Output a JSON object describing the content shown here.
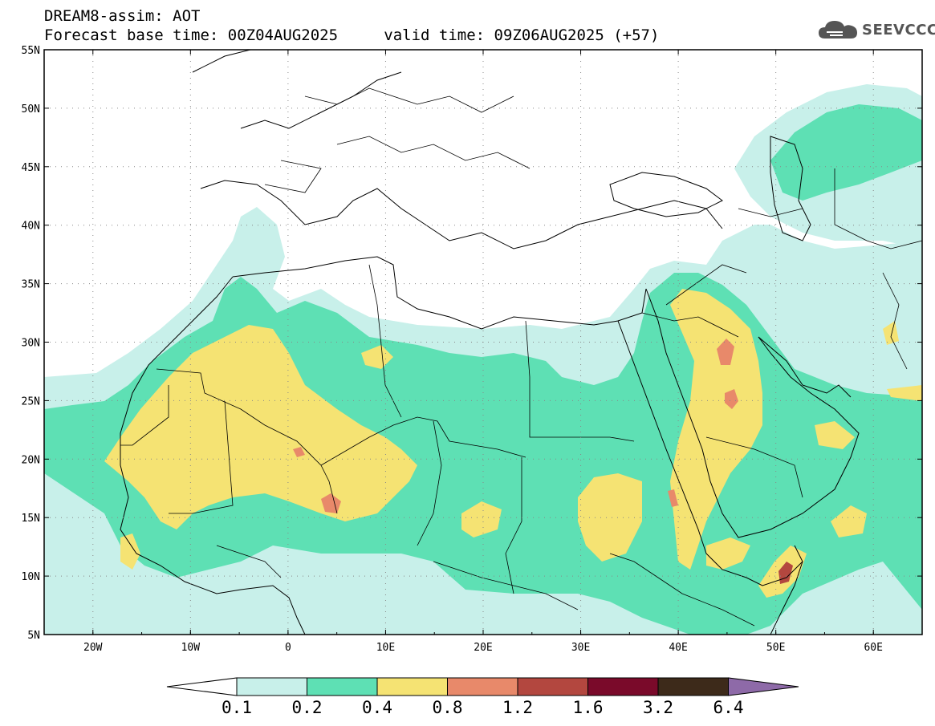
{
  "header": {
    "title": "DREAM8-assim: AOT",
    "base_time": "Forecast base time: 00Z04AUG2025",
    "valid_time": "valid time: 09Z06AUG2025 (+57)"
  },
  "logo": {
    "text": "SEEVCCC",
    "icon": "cloud-icon"
  },
  "map": {
    "lon_range": [
      -25,
      65
    ],
    "lat_range": [
      5,
      55
    ],
    "lat_ticks": [
      "55N",
      "50N",
      "45N",
      "40N",
      "35N",
      "30N",
      "25N",
      "20N",
      "15N",
      "10N",
      "5N"
    ],
    "lon_ticks": [
      "20W",
      "10W",
      "0",
      "10E",
      "20E",
      "30E",
      "40E",
      "50E",
      "60E"
    ],
    "grid": true,
    "field": "aerosol optical thickness",
    "high_aot_regions": [
      {
        "lon": -3,
        "lat": 23,
        "class": "0.4-0.8"
      },
      {
        "lon": 44,
        "lat": 26,
        "class": "0.4-0.8"
      },
      {
        "lon": 4.5,
        "lat": 16.5,
        "class": "0.8-1.2"
      },
      {
        "lon": 44.5,
        "lat": 29,
        "class": "0.8-1.2"
      },
      {
        "lon": 51,
        "lat": 10.5,
        "class": "1.2-1.6"
      }
    ]
  },
  "colorbar": {
    "labels": [
      "0.1",
      "0.2",
      "0.4",
      "0.8",
      "1.2",
      "1.6",
      "3.2",
      "6.4"
    ],
    "colors": [
      "#c8f0ea",
      "#5ee0b4",
      "#f5e373",
      "#e8896a",
      "#b3473f",
      "#7a0a2a",
      "#3d2a1a",
      "#8e6aa8"
    ],
    "below_color": "#ffffff"
  },
  "colors": {
    "c01": "#c8f0ea",
    "c02": "#5ee0b4",
    "c04": "#f5e373",
    "c08": "#e8896a",
    "c12": "#b3473f"
  }
}
